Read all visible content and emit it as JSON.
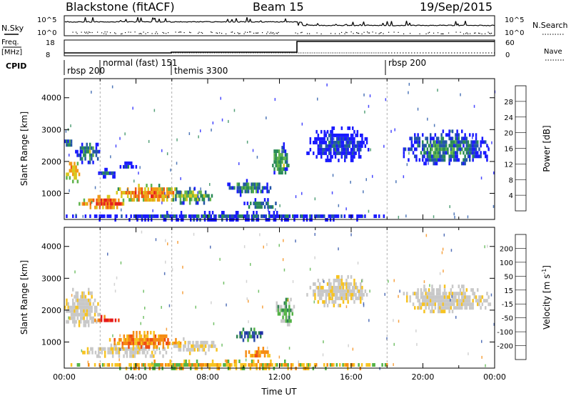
{
  "header": {
    "station": "Blackstone (fitACF)",
    "beam": "Beam 15",
    "date": "19/Sep/2015"
  },
  "status_panels": {
    "left_top_label": "N.Sky",
    "left_top_ticks": [
      "10^5",
      "10^0"
    ],
    "right_top_label": "N.Search",
    "right_top_ticks": [
      "10^5",
      "10^0"
    ],
    "left_freq_label_1": "Freq.",
    "left_freq_label_2": "[MHz]",
    "left_freq_ticks": [
      "18",
      "8"
    ],
    "right_freq_label": "Nave",
    "right_freq_ticks": [
      "60",
      "0"
    ],
    "cpid_label": "CPID",
    "cpid_segments": [
      {
        "label": "rbsp 200",
        "start_hour": 0
      },
      {
        "label": "normal (fast) 151",
        "start_hour": 2
      },
      {
        "label": "themis 3300",
        "start_hour": 6
      },
      {
        "label": "rbsp 200",
        "start_hour": 18
      }
    ]
  },
  "chart_data": [
    {
      "type": "heatmap",
      "title": "Power",
      "xlabel": "",
      "ylabel": "Slant Range [km]",
      "xlim_hours": [
        0,
        24
      ],
      "ylim": [
        180,
        4600
      ],
      "y_ticks": [
        "1000",
        "2000",
        "3000",
        "4000"
      ],
      "colorbar_label": "Power [dB]",
      "colorbar_ticks": [
        "4",
        "8",
        "12",
        "16",
        "20",
        "24",
        "28"
      ],
      "colorbar_colors": [
        "#1a1aff",
        "#2456a8",
        "#2a8a57",
        "#5fb34b",
        "#d8c81e",
        "#f39a16",
        "#ef5a14",
        "#e5201a"
      ],
      "regions": [
        {
          "t0": 0.0,
          "t1": 0.9,
          "r0": 1400,
          "r1": 2100,
          "level": 0.75
        },
        {
          "t0": 0.0,
          "t1": 0.5,
          "r0": 2500,
          "r1": 2800,
          "level": 0.3
        },
        {
          "t0": 0.6,
          "t1": 2.0,
          "r0": 1950,
          "r1": 2700,
          "level": 0.35
        },
        {
          "t0": 1.8,
          "t1": 3.0,
          "r0": 1550,
          "r1": 1800,
          "level": 0.25
        },
        {
          "t0": 3.0,
          "t1": 4.0,
          "r0": 1800,
          "r1": 2000,
          "level": 0.2
        },
        {
          "t0": 0.8,
          "t1": 3.5,
          "r0": 550,
          "r1": 950,
          "level": 0.9
        },
        {
          "t0": 2.8,
          "t1": 6.5,
          "r0": 750,
          "r1": 1300,
          "level": 0.8
        },
        {
          "t0": 6.0,
          "t1": 8.3,
          "r0": 700,
          "r1": 1200,
          "level": 0.5
        },
        {
          "t0": 9.0,
          "t1": 11.5,
          "r0": 1000,
          "r1": 1450,
          "level": 0.4
        },
        {
          "t0": 10.0,
          "t1": 12.0,
          "r0": 550,
          "r1": 850,
          "level": 0.35
        },
        {
          "t0": 11.5,
          "t1": 12.5,
          "r0": 1600,
          "r1": 2600,
          "level": 0.45
        },
        {
          "t0": 13.5,
          "t1": 17.0,
          "r0": 2000,
          "r1": 3100,
          "level": 0.15
        },
        {
          "t0": 18.8,
          "t1": 23.8,
          "r0": 1900,
          "r1": 3000,
          "level": 0.3
        },
        {
          "t0": 0.0,
          "t1": 18.0,
          "r0": 200,
          "r1": 450,
          "level": 0.2
        }
      ]
    },
    {
      "type": "heatmap",
      "title": "Velocity",
      "xlabel": "Time UT",
      "ylabel": "Slant Range [km]",
      "xlim_hours": [
        0,
        24
      ],
      "ylim": [
        180,
        4600
      ],
      "x_ticks": [
        "00:00",
        "04:00",
        "08:00",
        "12:00",
        "16:00",
        "20:00",
        "00:00"
      ],
      "y_ticks": [
        "1000",
        "2000",
        "3000",
        "4000"
      ],
      "colorbar_label": "Velocity [m s^-1]",
      "colorbar_ticks": [
        "-200",
        "-100",
        "-50",
        "-15",
        "15",
        "50",
        "100",
        "200"
      ],
      "colorbar_colors": [
        "#e61a1a",
        "#ee4e14",
        "#f58c13",
        "#f7c321",
        "#c8c8c8",
        "#54b346",
        "#2f8254",
        "#2b4fa8",
        "#1e2fa5"
      ],
      "regions": [
        {
          "t0": 0.0,
          "t1": 2.0,
          "r0": 1500,
          "r1": 2700,
          "level": "ground"
        },
        {
          "t0": 1.5,
          "t1": 3.0,
          "r0": 1650,
          "r1": 1850,
          "level": "toward_strong"
        },
        {
          "t0": 1.0,
          "t1": 6.0,
          "r0": 550,
          "r1": 950,
          "level": "ground"
        },
        {
          "t0": 2.5,
          "t1": 6.5,
          "r0": 800,
          "r1": 1350,
          "level": "toward_med"
        },
        {
          "t0": 6.0,
          "t1": 8.5,
          "r0": 700,
          "r1": 1150,
          "level": "ground"
        },
        {
          "t0": 9.5,
          "t1": 11.0,
          "r0": 1100,
          "r1": 1450,
          "level": "away"
        },
        {
          "t0": 10.0,
          "t1": 11.5,
          "r0": 550,
          "r1": 850,
          "level": "toward_med"
        },
        {
          "t0": 11.8,
          "t1": 12.8,
          "r0": 1600,
          "r1": 2500,
          "level": "away_low"
        },
        {
          "t0": 13.5,
          "t1": 17.0,
          "r0": 2200,
          "r1": 3100,
          "level": "ground"
        },
        {
          "t0": 18.8,
          "t1": 23.8,
          "r0": 2000,
          "r1": 2800,
          "level": "ground"
        },
        {
          "t0": 0.0,
          "t1": 18.0,
          "r0": 200,
          "r1": 450,
          "level": "toward_weak"
        }
      ]
    }
  ]
}
